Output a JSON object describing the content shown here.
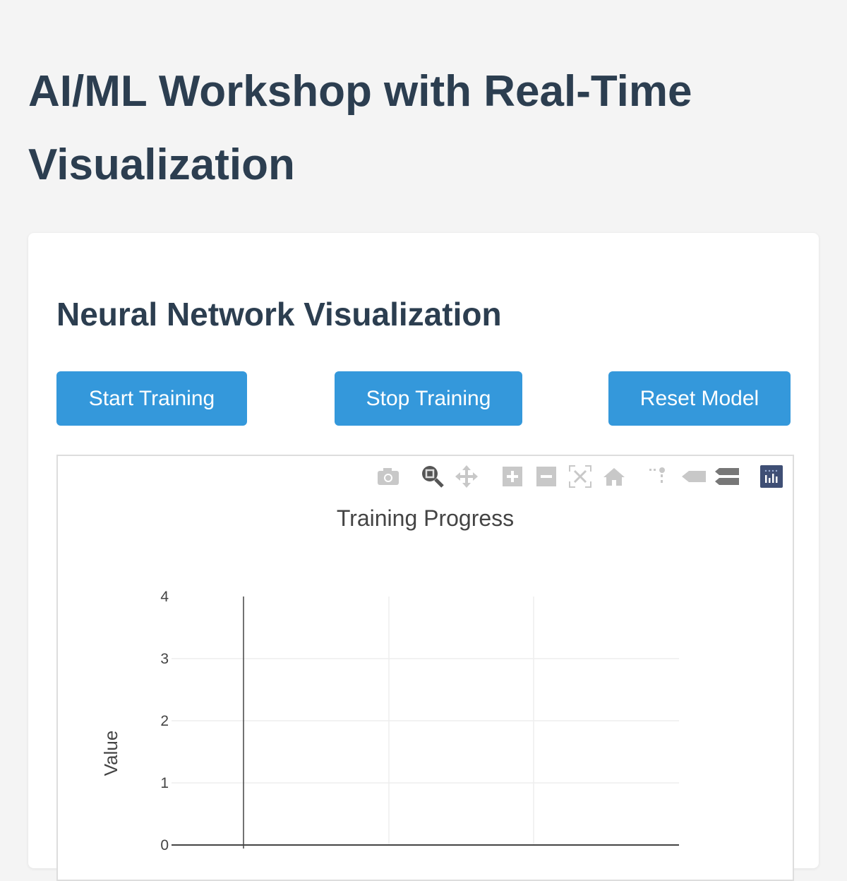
{
  "page_title": "AI/ML Workshop with Real-Time Visualization",
  "section_title": "Neural Network Visualization",
  "buttons": {
    "start": "Start Training",
    "stop": "Stop Training",
    "reset": "Reset Model"
  },
  "colors": {
    "primary": "#3498db",
    "heading": "#2c3e50"
  },
  "toolbar": [
    "camera-icon",
    "zoom-icon",
    "pan-icon",
    "zoom-in-icon",
    "zoom-out-icon",
    "autoscale-icon",
    "reset-axes-icon",
    "spike-lines-icon",
    "hover-closest-icon",
    "hover-compare-icon",
    "plotly-logo-icon"
  ],
  "chart_data": {
    "type": "line",
    "title": "Training Progress",
    "ylabel": "Value",
    "ylim": [
      0,
      4
    ],
    "yticks": [
      "0",
      "1",
      "2",
      "3",
      "4"
    ],
    "grid": true,
    "series": []
  }
}
